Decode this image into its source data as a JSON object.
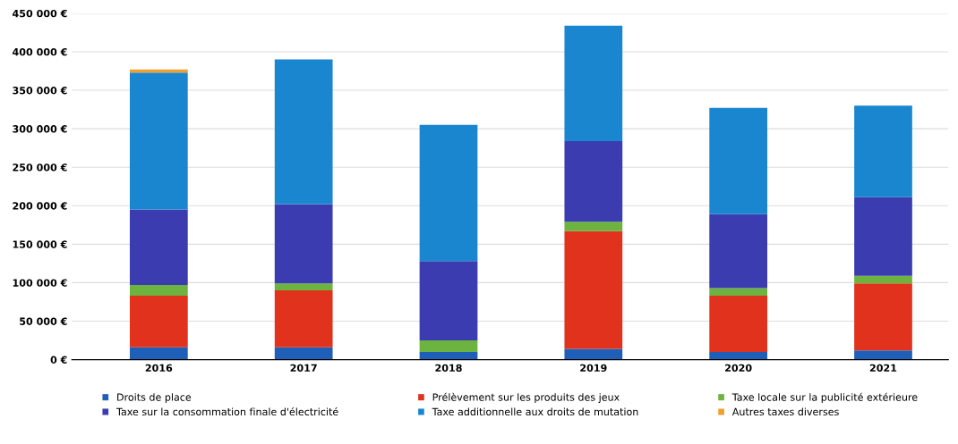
{
  "chart_data": {
    "type": "bar",
    "stacked": true,
    "categories": [
      "2016",
      "2017",
      "2018",
      "2019",
      "2020",
      "2021"
    ],
    "series": [
      {
        "name": "Droits de place",
        "color": "#1f5fb8",
        "values": [
          16000,
          16000,
          10000,
          14000,
          10000,
          12000
        ]
      },
      {
        "name": "Prélèvement sur les produits des jeux",
        "color": "#e0321c",
        "values": [
          67000,
          74000,
          0,
          153000,
          73000,
          87000
        ]
      },
      {
        "name": "Taxe locale sur la publicité extérieure",
        "color": "#6cb33f",
        "values": [
          14000,
          9000,
          15000,
          12000,
          10000,
          10000
        ]
      },
      {
        "name": "Taxe sur la consommation finale d'électricité",
        "color": "#3b3cb0",
        "values": [
          98000,
          103000,
          103000,
          105000,
          96000,
          102000
        ]
      },
      {
        "name": "Taxe additionnelle aux droits de mutation",
        "color": "#1a86d0",
        "values": [
          178000,
          188000,
          177000,
          150000,
          138000,
          119000
        ]
      },
      {
        "name": "Autres taxes diverses",
        "color": "#f0a030",
        "values": [
          4000,
          0,
          0,
          0,
          0,
          0
        ]
      }
    ],
    "ylim": [
      0,
      450000
    ],
    "yticks": [
      {
        "value": 0,
        "label": "0 €"
      },
      {
        "value": 50000,
        "label": "50 000 €"
      },
      {
        "value": 100000,
        "label": "100 000 €"
      },
      {
        "value": 150000,
        "label": "150 000 €"
      },
      {
        "value": 200000,
        "label": "200 000 €"
      },
      {
        "value": 250000,
        "label": "250 000 €"
      },
      {
        "value": 300000,
        "label": "300 000 €"
      },
      {
        "value": 350000,
        "label": "350 000 €"
      },
      {
        "value": 400000,
        "label": "400 000 €"
      },
      {
        "value": 450000,
        "label": "450 000 €"
      }
    ],
    "grid": "y",
    "legend": "bottom"
  }
}
